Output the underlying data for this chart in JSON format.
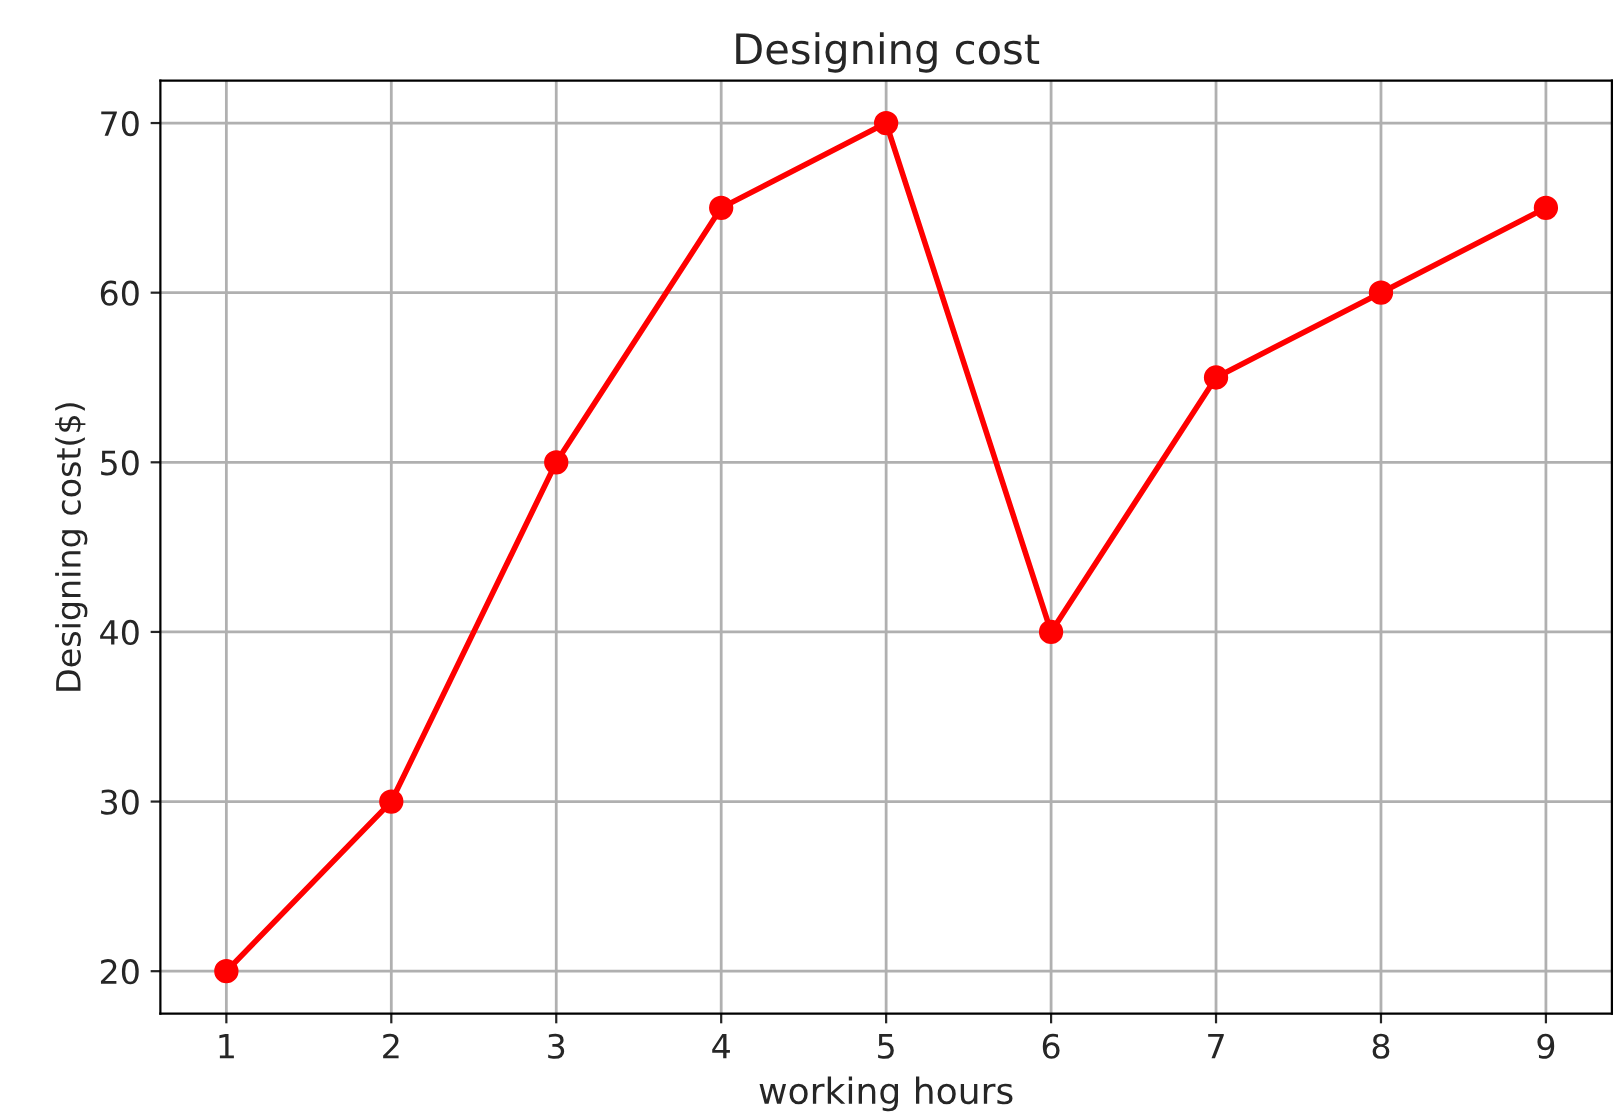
{
  "chart_data": {
    "type": "line",
    "title": "Designing cost",
    "xlabel": "working hours",
    "ylabel": "Designing cost($)",
    "x": [
      1,
      2,
      3,
      4,
      5,
      6,
      7,
      8,
      9
    ],
    "series": [
      {
        "color": "#ff0000",
        "values": [
          20,
          30,
          50,
          65,
          70,
          40,
          55,
          60,
          65
        ]
      }
    ],
    "xlim": [
      0.6,
      9.4
    ],
    "xticks": [
      1,
      2,
      3,
      4,
      5,
      6,
      7,
      8,
      9
    ],
    "ylim": [
      17.5,
      72.5
    ],
    "yticks": [
      20,
      30,
      40,
      50,
      60,
      70
    ],
    "grid": true,
    "marker": "circle",
    "line_style": "solid"
  }
}
